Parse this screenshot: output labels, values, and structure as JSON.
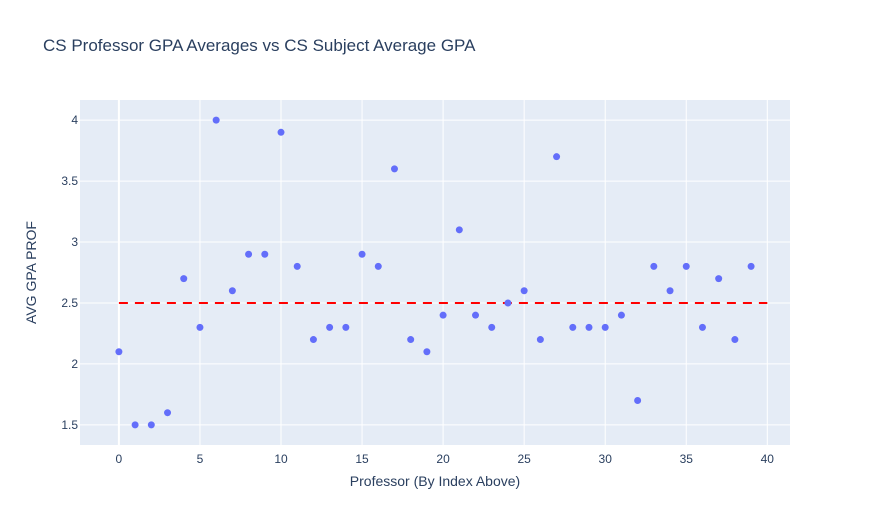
{
  "chart_data": {
    "type": "scatter",
    "title": "CS Professor GPA Averages vs CS Subject Average GPA",
    "xlabel": "Professor (By Index Above)",
    "ylabel": "AVG GPA PROF",
    "xlim": [
      -2.4,
      41.4
    ],
    "ylim": [
      1.335,
      4.165
    ],
    "x_ticks": [
      0,
      5,
      10,
      15,
      20,
      25,
      30,
      35,
      40
    ],
    "y_ticks": [
      1.5,
      2,
      2.5,
      3,
      3.5,
      4
    ],
    "x_tick_labels": [
      "0",
      "5",
      "10",
      "15",
      "20",
      "25",
      "30",
      "35",
      "40"
    ],
    "y_tick_labels": [
      "1.5",
      "2",
      "2.5",
      "3",
      "3.5",
      "4"
    ],
    "grid": true,
    "series": [
      {
        "x": [
          0,
          1,
          2,
          3,
          4,
          5,
          6,
          7,
          8,
          9,
          10,
          11,
          12,
          13,
          14,
          15,
          16,
          17,
          18,
          19,
          20,
          21,
          22,
          23,
          24,
          25,
          26,
          27,
          28,
          29,
          30,
          31,
          32,
          33,
          34,
          35,
          36,
          37,
          38,
          39
        ],
        "y": [
          2.1,
          1.5,
          1.5,
          1.6,
          2.7,
          2.3,
          4.0,
          2.6,
          2.9,
          2.9,
          3.9,
          2.8,
          2.2,
          2.3,
          2.3,
          2.9,
          2.8,
          3.6,
          2.2,
          2.1,
          2.4,
          3.1,
          2.4,
          2.3,
          2.5,
          2.6,
          2.2,
          3.7,
          2.3,
          2.3,
          2.3,
          2.4,
          1.7,
          2.8,
          2.6,
          2.8,
          2.3,
          2.7,
          2.2,
          2.8
        ]
      }
    ],
    "reference_line": {
      "y": 2.5,
      "x_range": [
        0,
        40
      ],
      "style": "dashed"
    },
    "colors": {
      "marker": "#636efa",
      "reference": "#ff0000",
      "plot_bg": "#e5ecf6",
      "grid": "#ffffff",
      "text": "#2a3f5f"
    }
  }
}
